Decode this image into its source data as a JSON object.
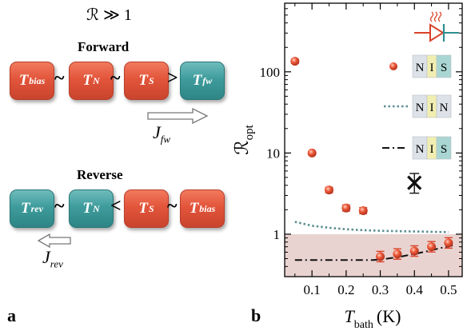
{
  "panel_a": {
    "condition": "ℛ ≫ 1",
    "forward": {
      "title": "Forward",
      "boxes": [
        {
          "main": "T",
          "sub": "bias",
          "color": "red"
        },
        {
          "main": "T",
          "sub": "N",
          "color": "red"
        },
        {
          "main": "T",
          "sub": "S",
          "color": "red"
        },
        {
          "main": "T",
          "sub": "fw",
          "color": "teal"
        }
      ],
      "operators": [
        "~",
        "~",
        ">"
      ],
      "current": {
        "main": "J",
        "sub": "fw"
      }
    },
    "reverse": {
      "title": "Reverse",
      "boxes": [
        {
          "main": "T",
          "sub": "rev",
          "color": "teal"
        },
        {
          "main": "T",
          "sub": "N",
          "color": "teal"
        },
        {
          "main": "T",
          "sub": "S",
          "color": "red"
        },
        {
          "main": "T",
          "sub": "bias",
          "color": "red"
        }
      ],
      "operators": [
        "~",
        "<",
        "~"
      ],
      "current": {
        "main": "J",
        "sub": "rev"
      }
    },
    "label": "a"
  },
  "panel_b_label": "b",
  "colors": {
    "red": "#e2553b",
    "teal": "#3f9c9c",
    "shade": "#e9d3d0",
    "dotted": "#5a8e92"
  },
  "chart_data": {
    "type": "scatter",
    "xlabel_main": "T",
    "xlabel_sub": "bath",
    "xlabel_unit": "(K)",
    "ylabel_main": "ℛ",
    "ylabel_sub": "opt",
    "xlim": [
      0.02,
      0.54
    ],
    "ylim": [
      0.3,
      700
    ],
    "yscale": "log",
    "xticks": [
      0.1,
      0.2,
      0.3,
      0.4,
      0.5
    ],
    "xtick_labels": [
      "0.1",
      "0.2",
      "0.3",
      "0.4",
      "0.5"
    ],
    "yticks": [
      1,
      10,
      100
    ],
    "ytick_labels": [
      "1",
      "10",
      "100"
    ],
    "shaded_region": {
      "y_from": 0.3,
      "y_to": 1
    },
    "nis_points": {
      "x": [
        0.05,
        0.1,
        0.15,
        0.2,
        0.25
      ],
      "y": [
        135,
        10,
        3.5,
        2.1,
        1.95
      ],
      "yerr": [
        0.06,
        0.05,
        0.08,
        0.09,
        0.09
      ]
    },
    "nis_low_points": {
      "x": [
        0.3,
        0.35,
        0.4,
        0.45,
        0.5
      ],
      "y": [
        0.53,
        0.57,
        0.62,
        0.7,
        0.78
      ],
      "yerr": [
        0.16,
        0.16,
        0.16,
        0.16,
        0.16
      ]
    },
    "cross_point": {
      "x": 0.4,
      "y": 4.3,
      "yerr": [
        3.2,
        5.6
      ]
    },
    "nin_line": {
      "x": [
        0.05,
        0.1,
        0.15,
        0.2,
        0.25,
        0.3,
        0.35,
        0.4,
        0.45,
        0.5
      ],
      "y": [
        1.42,
        1.27,
        1.2,
        1.15,
        1.12,
        1.1,
        1.09,
        1.08,
        1.07,
        1.06
      ]
    },
    "nis_line": {
      "x": [
        0.05,
        0.1,
        0.15,
        0.2,
        0.25,
        0.28,
        0.32,
        0.36,
        0.4,
        0.44,
        0.48,
        0.52
      ],
      "y": [
        0.48,
        0.48,
        0.48,
        0.48,
        0.48,
        0.48,
        0.5,
        0.53,
        0.57,
        0.62,
        0.68,
        0.74
      ]
    },
    "legend": [
      {
        "kind": "dot",
        "layers": [
          "N",
          "I",
          "S"
        ]
      },
      {
        "kind": "dotted",
        "layers": [
          "N",
          "I",
          "N"
        ]
      },
      {
        "kind": "dashdot",
        "layers": [
          "N",
          "I",
          "S"
        ]
      }
    ]
  }
}
